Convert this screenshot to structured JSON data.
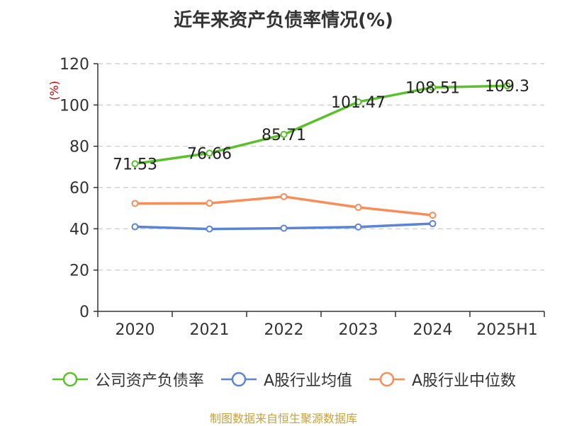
{
  "title": "近年来资产负债率情况(%)",
  "source_note": "制图数据来自恒生聚源数据库",
  "chart_data": {
    "type": "line",
    "title": "近年来资产负债率情况(%)",
    "xlabel": "",
    "ylabel": "(%)",
    "categories": [
      "2020",
      "2021",
      "2022",
      "2023",
      "2024",
      "2025H1"
    ],
    "ylim": [
      0,
      120
    ],
    "yticks": [
      0,
      20,
      40,
      60,
      80,
      100,
      120
    ],
    "grid": "horizontal-dashed",
    "legend_position": "bottom",
    "series": [
      {
        "name": "公司资产负债率",
        "color": "#5bc12b",
        "show_labels": true,
        "values": [
          71.53,
          76.66,
          85.71,
          101.47,
          108.51,
          109.3
        ],
        "labels": [
          "71.53",
          "76.66",
          "85.71",
          "101.47",
          "108.51",
          "109.3"
        ]
      },
      {
        "name": "A股行业均值",
        "color": "#5b83d6",
        "show_labels": false,
        "values": [
          41.0,
          39.9,
          40.3,
          40.9,
          42.5,
          null
        ]
      },
      {
        "name": "A股行业中位数",
        "color": "#f88d58",
        "show_labels": false,
        "values": [
          52.3,
          52.4,
          55.6,
          50.4,
          46.6,
          null
        ]
      }
    ]
  }
}
